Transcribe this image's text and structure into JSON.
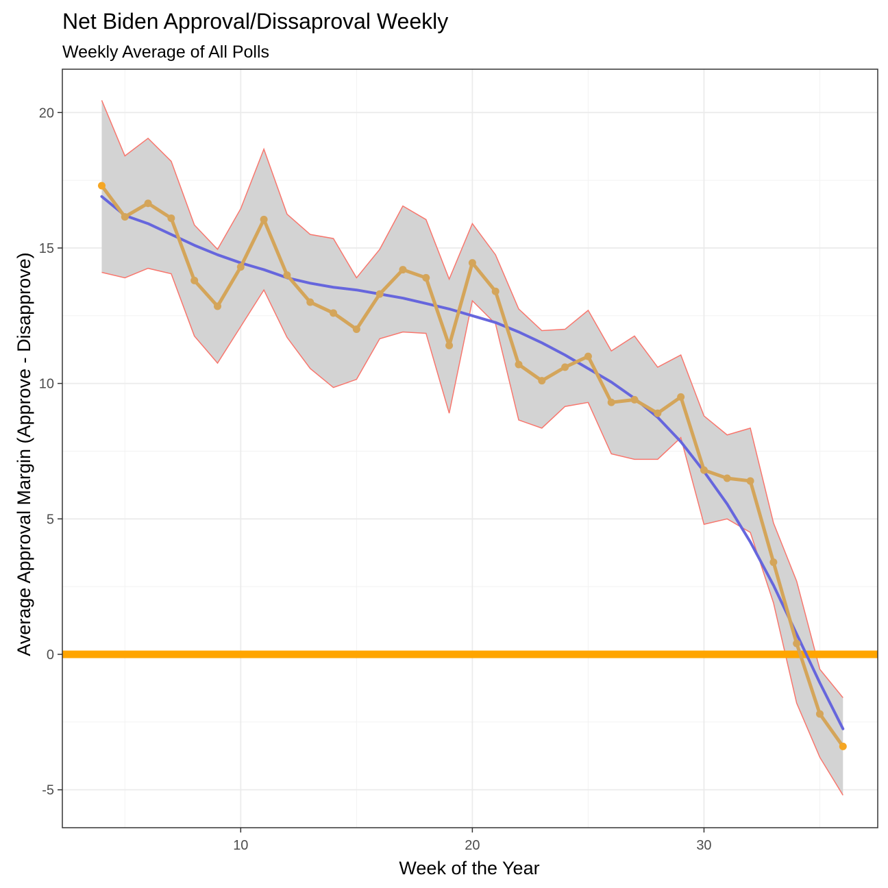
{
  "chart_data": {
    "type": "line",
    "title": "Net Biden Approval/Dissaproval Weekly",
    "subtitle": "Weekly Average of All Polls",
    "xlabel": "Week of the Year",
    "ylabel": "Average Approval Margin (Approve - Disapprove)",
    "xlim": [
      2.3,
      37.5
    ],
    "ylim": [
      -6.4,
      21.6
    ],
    "xticks": [
      10,
      20,
      30
    ],
    "yticks": [
      -5,
      0,
      5,
      10,
      15,
      20
    ],
    "grid": true,
    "reference_line": {
      "y": 0,
      "color": "#FFA500"
    },
    "x": [
      4,
      5,
      6,
      7,
      8,
      9,
      10,
      11,
      12,
      13,
      14,
      15,
      16,
      17,
      18,
      19,
      20,
      21,
      22,
      23,
      24,
      25,
      26,
      27,
      28,
      29,
      30,
      31,
      32,
      33,
      34,
      35,
      36
    ],
    "series": [
      {
        "values": [
          17.3,
          16.15,
          16.65,
          16.1,
          13.8,
          12.85,
          14.3,
          16.05,
          14.0,
          13.0,
          12.6,
          12.0,
          13.3,
          14.2,
          13.9,
          11.4,
          14.45,
          13.4,
          10.7,
          10.1,
          10.6,
          11.0,
          9.3,
          9.4,
          8.9,
          9.5,
          6.8,
          6.5,
          6.4,
          3.4,
          0.4,
          -2.2,
          -3.4
        ],
        "color": "#D4A55A"
      },
      {
        "type": "ribbon",
        "lower": [
          14.1,
          13.9,
          14.25,
          14.05,
          11.75,
          10.75,
          12.1,
          13.45,
          11.7,
          10.55,
          9.85,
          10.15,
          11.65,
          11.9,
          11.85,
          8.9,
          13.05,
          12.2,
          8.65,
          8.35,
          9.15,
          9.3,
          7.4,
          7.2,
          7.2,
          8.0,
          4.8,
          5.0,
          4.5,
          1.9,
          -1.8,
          -3.8,
          -5.2
        ],
        "upper": [
          20.45,
          18.4,
          19.05,
          18.2,
          15.85,
          14.95,
          16.45,
          18.65,
          16.25,
          15.5,
          15.35,
          13.9,
          14.95,
          16.55,
          16.05,
          13.85,
          15.9,
          14.75,
          12.75,
          11.95,
          12.0,
          12.7,
          11.2,
          11.75,
          10.6,
          11.05,
          8.8,
          8.1,
          8.35,
          4.85,
          2.7,
          -0.55,
          -1.6
        ],
        "fill": "#D3D3D3",
        "stroke": "#F8766D"
      },
      {
        "type": "smooth",
        "values": [
          16.9,
          16.2,
          15.9,
          15.5,
          15.1,
          14.75,
          14.45,
          14.2,
          13.9,
          13.7,
          13.55,
          13.45,
          13.3,
          13.15,
          12.95,
          12.75,
          12.5,
          12.25,
          11.9,
          11.5,
          11.05,
          10.55,
          10.05,
          9.45,
          8.75,
          7.85,
          6.75,
          5.55,
          4.15,
          2.55,
          0.75,
          -1.05,
          -2.75
        ],
        "color": "#6666DD"
      }
    ]
  }
}
